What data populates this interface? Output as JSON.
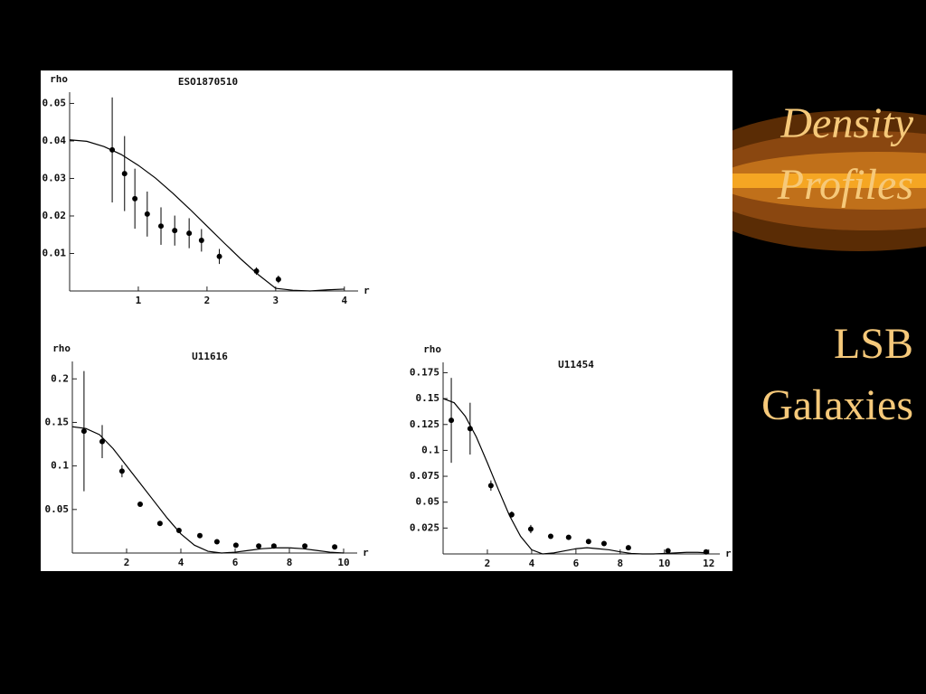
{
  "slide": {
    "title": [
      "Density",
      "Profiles"
    ],
    "subtitle": [
      "LSB",
      "Galaxies"
    ]
  },
  "chart_data": [
    {
      "type": "scatter",
      "title": "ESO1870510",
      "y_label": "rho",
      "x_label": "r",
      "xlim": [
        0,
        4.2
      ],
      "ylim": [
        0,
        0.053
      ],
      "xticks": [
        1,
        2,
        3,
        4
      ],
      "yticks": [
        0.01,
        0.02,
        0.03,
        0.04,
        0.05
      ],
      "color": "#000000",
      "points": {
        "x": [
          0.62,
          0.8,
          0.95,
          1.13,
          1.33,
          1.53,
          1.74,
          1.92,
          2.18,
          2.72,
          3.04
        ],
        "values": [
          0.0376,
          0.0313,
          0.0246,
          0.0205,
          0.0173,
          0.0161,
          0.0154,
          0.0135,
          0.0092,
          0.0053,
          0.0031
        ],
        "errors": [
          0.014,
          0.01,
          0.008,
          0.006,
          0.005,
          0.004,
          0.004,
          0.003,
          0.002,
          0.001,
          0.001
        ]
      },
      "curve": {
        "x": [
          0,
          0.25,
          0.5,
          0.75,
          1,
          1.25,
          1.5,
          1.75,
          2,
          2.25,
          2.5,
          2.75,
          3,
          3.25,
          3.5,
          3.75,
          4
        ],
        "values": [
          0.0403,
          0.0399,
          0.0385,
          0.0364,
          0.0335,
          0.0301,
          0.0261,
          0.0218,
          0.0173,
          0.0128,
          0.0084,
          0.0043,
          0.0007,
          0.0002,
          0,
          0.0003,
          0.0005
        ]
      }
    },
    {
      "type": "scatter",
      "title": "U11616",
      "y_label": "rho",
      "x_label": "r",
      "xlim": [
        0,
        10.5
      ],
      "ylim": [
        0,
        0.22
      ],
      "xticks": [
        2,
        4,
        6,
        8,
        10
      ],
      "yticks": [
        0.05,
        0.1,
        0.15,
        0.2
      ],
      "color": "#000000",
      "points": {
        "x": [
          0.43,
          1.1,
          1.83,
          2.5,
          3.23,
          3.93,
          4.7,
          5.33,
          6.03,
          6.87,
          7.43,
          8.57,
          9.67
        ],
        "values": [
          0.14,
          0.128,
          0.094,
          0.056,
          0.034,
          0.026,
          0.02,
          0.013,
          0.009,
          0.008,
          0.008,
          0.008,
          0.007
        ],
        "errors": [
          0.069,
          0.019,
          0.007,
          0.003,
          0.002,
          0.002,
          0.002,
          0.001,
          0.001,
          0.001,
          0.001,
          0.001,
          0.001
        ]
      },
      "curve": {
        "x": [
          0,
          0.5,
          1,
          1.5,
          2,
          2.5,
          3,
          3.5,
          4,
          4.5,
          5,
          5.5,
          6,
          6.5,
          7,
          7.5,
          8,
          8.5,
          9,
          9.5,
          10
        ],
        "values": [
          0.145,
          0.143,
          0.136,
          0.12,
          0.1,
          0.08,
          0.06,
          0.04,
          0.022,
          0.009,
          0.002,
          0,
          0.001,
          0.003,
          0.005,
          0.006,
          0.006,
          0.005,
          0.003,
          0.001,
          0
        ]
      }
    },
    {
      "type": "scatter",
      "title": "U11454",
      "y_label": "rho",
      "x_label": "r",
      "xlim": [
        0,
        12.5
      ],
      "ylim": [
        0,
        0.185
      ],
      "xticks": [
        2,
        4,
        6,
        8,
        10,
        12
      ],
      "yticks": [
        0.025,
        0.05,
        0.075,
        0.1,
        0.125,
        0.15,
        0.175
      ],
      "color": "#000000",
      "points": {
        "x": [
          0.37,
          1.22,
          2.16,
          3.1,
          3.96,
          4.86,
          5.67,
          6.57,
          7.27,
          8.37,
          10.16,
          11.88
        ],
        "values": [
          0.129,
          0.121,
          0.066,
          0.038,
          0.024,
          0.017,
          0.016,
          0.012,
          0.01,
          0.006,
          0.003,
          0.002
        ],
        "errors": [
          0.041,
          0.025,
          0.005,
          0.003,
          0.004,
          0.002,
          0.002,
          0.002,
          0.002,
          0.001,
          0.001,
          0.001
        ]
      },
      "curve": {
        "x": [
          0,
          0.5,
          1,
          1.5,
          2,
          2.5,
          3,
          3.5,
          4,
          4.5,
          5,
          5.5,
          6,
          6.5,
          7,
          7.5,
          8,
          8.5,
          9,
          9.5,
          10,
          10.5,
          11,
          11.5,
          12
        ],
        "values": [
          0.15,
          0.146,
          0.133,
          0.113,
          0.088,
          0.062,
          0.037,
          0.017,
          0.004,
          0,
          0.001,
          0.003,
          0.005,
          0.006,
          0.005,
          0.004,
          0.002,
          0.0005,
          0,
          0,
          0.0005,
          0.001,
          0.0015,
          0.0015,
          0.001
        ]
      }
    }
  ]
}
